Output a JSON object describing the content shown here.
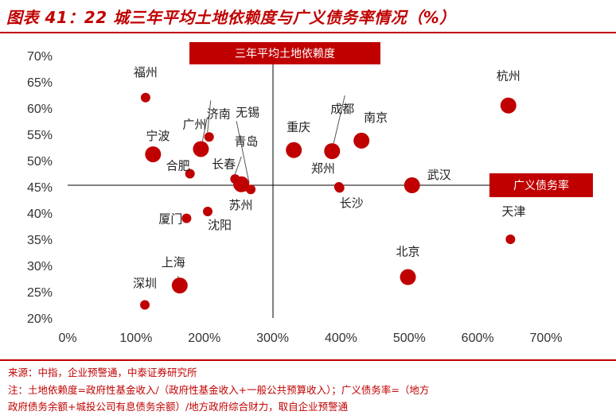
{
  "title": "图表 41：22 城三年平均土地依赖度与广义债务率情况（%）",
  "chart_data": {
    "type": "scatter",
    "xlabel": "广义债务率",
    "ylabel": "三年平均土地依赖度",
    "xlim": [
      0,
      700
    ],
    "ylim": [
      20,
      70
    ],
    "xticks": [
      "0%",
      "100%",
      "200%",
      "300%",
      "400%",
      "500%",
      "600%",
      "700%"
    ],
    "yticks": [
      "20%",
      "25%",
      "30%",
      "35%",
      "40%",
      "45%",
      "50%",
      "55%",
      "60%",
      "65%",
      "70%"
    ],
    "points": [
      {
        "name": "福州",
        "x": 114,
        "y": 62.0,
        "big": false
      },
      {
        "name": "杭州",
        "x": 645,
        "y": 60.5,
        "big": true
      },
      {
        "name": "济南",
        "x": 207,
        "y": 54.5,
        "big": false
      },
      {
        "name": "广州",
        "x": 195,
        "y": 52.2,
        "big": true
      },
      {
        "name": "宁波",
        "x": 125,
        "y": 51.2,
        "big": true
      },
      {
        "name": "合肥",
        "x": 179,
        "y": 47.5,
        "big": false
      },
      {
        "name": "无锡",
        "x": 268,
        "y": 44.5,
        "big": false
      },
      {
        "name": "青岛",
        "x": 245,
        "y": 46.5,
        "big": false
      },
      {
        "name": "长春",
        "x": 254,
        "y": 45.5,
        "big": true
      },
      {
        "name": "苏州",
        "x": 258,
        "y": 45.0,
        "big": false
      },
      {
        "name": "重庆",
        "x": 331,
        "y": 52.0,
        "big": true
      },
      {
        "name": "成都",
        "x": 387,
        "y": 51.8,
        "big": true
      },
      {
        "name": "南京",
        "x": 430,
        "y": 53.8,
        "big": true
      },
      {
        "name": "郑州",
        "x": 397,
        "y": 45.0,
        "big": false
      },
      {
        "name": "长沙",
        "x": 398,
        "y": 44.8,
        "big": false
      },
      {
        "name": "武汉",
        "x": 504,
        "y": 45.3,
        "big": true
      },
      {
        "name": "厦门",
        "x": 174,
        "y": 39.0,
        "big": false
      },
      {
        "name": "沈阳",
        "x": 205,
        "y": 40.3,
        "big": false
      },
      {
        "name": "天津",
        "x": 648,
        "y": 35.0,
        "big": false
      },
      {
        "name": "北京",
        "x": 498,
        "y": 27.8,
        "big": true
      },
      {
        "name": "上海",
        "x": 164,
        "y": 26.2,
        "big": true
      },
      {
        "name": "深圳",
        "x": 113,
        "y": 22.5,
        "big": false
      }
    ],
    "color": "#c00000"
  },
  "footer": {
    "source": "来源：中指，企业预警通，中泰证券研究所",
    "note1": "注：土地依赖度=政府性基金收入/（政府性基金收入+一般公共预算收入）；广义债务率=（地方",
    "note2": "政府债务余额+城投公司有息债务余额）/地方政府综合财力，取自企业预警通"
  }
}
